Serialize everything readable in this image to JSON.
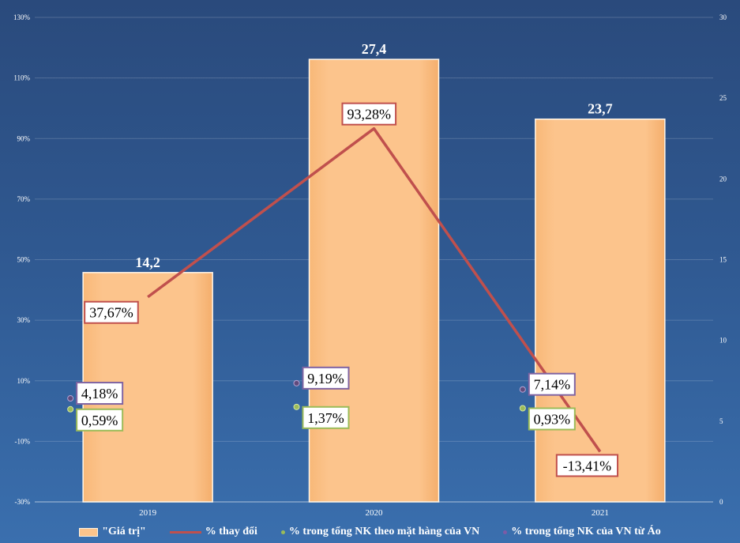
{
  "chart_data": {
    "type": "bar",
    "categories": [
      "2019",
      "2020",
      "2021"
    ],
    "series": [
      {
        "name": "\"Giá trị\"",
        "kind": "bar",
        "axis": "right",
        "values": [
          14.2,
          27.4,
          23.7
        ],
        "labels": [
          "14,2",
          "27,4",
          "23,7"
        ]
      },
      {
        "name": "% thay đổi",
        "kind": "line",
        "axis": "left",
        "values": [
          37.67,
          93.28,
          -13.41
        ],
        "labels": [
          "37,67%",
          "93,28%",
          "-13,41%"
        ]
      },
      {
        "name": "% trong tổng NK theo mặt hàng của VN",
        "kind": "point",
        "axis": "left",
        "values": [
          0.59,
          1.37,
          0.93
        ],
        "labels": [
          "0,59%",
          "1,37%",
          "0,93%"
        ]
      },
      {
        "name": "% trong tổng NK của VN từ Áo",
        "kind": "point",
        "axis": "left",
        "values": [
          4.18,
          9.19,
          7.14
        ],
        "labels": [
          "4,18%",
          "9,19%",
          "7,14%"
        ]
      }
    ],
    "y_left": {
      "range": [
        -30,
        130
      ],
      "ticks": [
        "-30%",
        "-10%",
        "10%",
        "30%",
        "50%",
        "70%",
        "90%",
        "110%",
        "130%"
      ]
    },
    "y_right": {
      "range": [
        0,
        30
      ],
      "ticks": [
        "0",
        "5",
        "10",
        "15",
        "20",
        "25",
        "30"
      ]
    },
    "grid": true,
    "legend_position": "bottom",
    "colors": {
      "bar": "#fcc48c",
      "line": "#c0504d",
      "share_item": "#9bbb59",
      "share_country": "#604a7b"
    }
  }
}
